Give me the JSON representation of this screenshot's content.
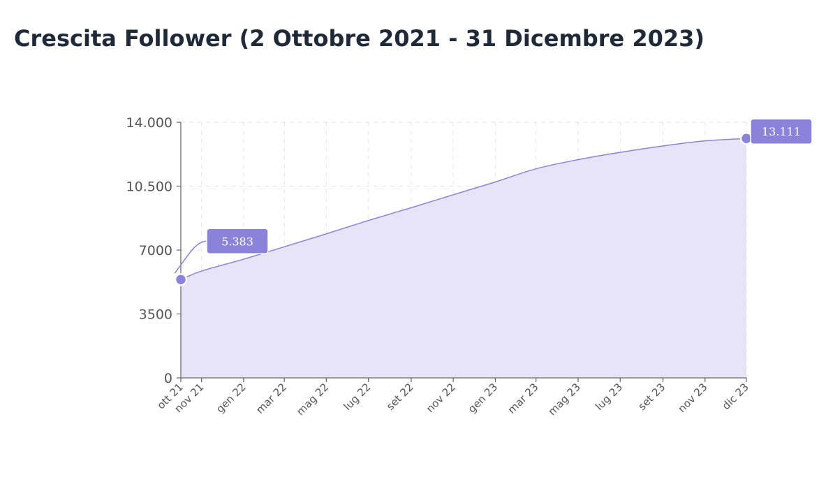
{
  "title": "Crescita Follower (2 Ottobre 2021 - 31 Dicembre 2023)",
  "chart_data": {
    "type": "area",
    "title": "Crescita Follower (2 Ottobre 2021 - 31 Dicembre 2023)",
    "xlabel": "",
    "ylabel": "",
    "ylim": [
      0,
      14000
    ],
    "y_ticks": [
      0,
      3500,
      7000,
      10500,
      14000
    ],
    "y_tick_labels": [
      "0",
      "3500",
      "7000",
      "10.500",
      "14.000"
    ],
    "x_ticks": [
      "2021-10-02",
      "2021-11-01",
      "2022-01-01",
      "2022-03-01",
      "2022-05-01",
      "2022-07-01",
      "2022-09-01",
      "2022-11-01",
      "2023-01-01",
      "2023-03-01",
      "2023-05-01",
      "2023-07-01",
      "2023-09-01",
      "2023-11-01",
      "2023-12-31"
    ],
    "x_tick_labels": [
      "ott 21",
      "nov 21",
      "gen 22",
      "mar 22",
      "mag 22",
      "lug 22",
      "set 22",
      "nov 22",
      "gen 23",
      "mar 23",
      "mag 23",
      "lug 23",
      "set 23",
      "nov 23",
      "dic 23"
    ],
    "grid": true,
    "series": [
      {
        "color": "#8b83d9",
        "fill": "#e6e4f6",
        "x": [
          "2021-10-02",
          "2021-11-01",
          "2022-01-01",
          "2022-03-01",
          "2022-05-01",
          "2022-07-01",
          "2022-09-01",
          "2022-11-01",
          "2023-01-01",
          "2023-03-01",
          "2023-05-01",
          "2023-07-01",
          "2023-09-01",
          "2023-11-01",
          "2023-12-31"
        ],
        "values": [
          5383,
          5850,
          6500,
          7180,
          7890,
          8620,
          9320,
          10030,
          10730,
          11450,
          11950,
          12350,
          12700,
          12980,
          13111
        ]
      }
    ],
    "annotations": [
      {
        "x": "2021-10-02",
        "value": 5383,
        "label": "5.383"
      },
      {
        "x": "2023-12-31",
        "value": 13111,
        "label": "13.111"
      }
    ]
  }
}
